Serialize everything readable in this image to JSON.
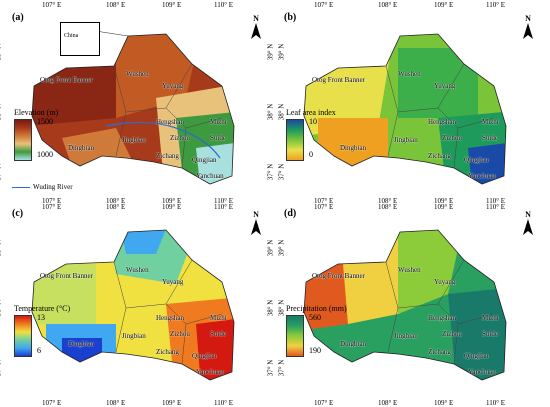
{
  "panels": [
    {
      "label": "(a)",
      "legend_title": "Elevation (m)",
      "legend_high": "1500",
      "legend_low": "1000",
      "colors": [
        "#7a1a10",
        "#a83a1c",
        "#d07a3a",
        "#e8c27a",
        "#3e9a3e",
        "#a8e0e0"
      ],
      "inset_label": "China",
      "river_label": "Wuding River"
    },
    {
      "label": "(b)",
      "legend_title": "Leaf area index",
      "legend_high": "10",
      "legend_low": "0",
      "colors": [
        "#1a4aa8",
        "#1e9a5a",
        "#7ac43a",
        "#e8e04a",
        "#f0a020"
      ]
    },
    {
      "label": "(c)",
      "legend_title": "Temperature (°C)",
      "legend_high": "13",
      "legend_low": "6",
      "colors": [
        "#d41a10",
        "#f07a20",
        "#f0e040",
        "#70d0a0",
        "#40a8f0",
        "#1a40d0"
      ]
    },
    {
      "label": "(d)",
      "legend_title": "Precipitation (mm)",
      "legend_high": "560",
      "legend_low": "190",
      "colors": [
        "#1a7a6a",
        "#2aa060",
        "#8ccc3a",
        "#f0d040",
        "#e05a20"
      ]
    }
  ],
  "lon_ticks": [
    "107° E",
    "108° E",
    "109° E",
    "110° E"
  ],
  "lat_ticks": [
    "39° N",
    "38° N",
    "37° N"
  ],
  "north_letter": "N",
  "places": {
    "otog": "Otog Front Banner",
    "wushen": "Wushen",
    "yuyang": "Yuyang",
    "hengshan": "Hengshan",
    "mizhi": "Mizhi",
    "jingbian": "Jingbian",
    "zizhou": "Zizhou",
    "suide": "Suide",
    "dingbian": "Dingbian",
    "zichang": "Zichang",
    "qingjian": "Qingjian",
    "yanchuan": "Yanchuan"
  }
}
